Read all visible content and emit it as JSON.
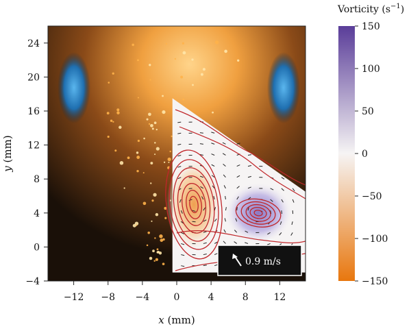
{
  "chart_data": {
    "type": "heatmap",
    "title": "",
    "xlabel": {
      "var": "x",
      "unit": "(mm)"
    },
    "ylabel": {
      "var": "y",
      "unit": "(mm)"
    },
    "xlim": [
      -15,
      15
    ],
    "ylim": [
      -4,
      26
    ],
    "x_ticks": [
      -12,
      -8,
      -4,
      0,
      4,
      8,
      12
    ],
    "y_ticks": [
      -4,
      0,
      4,
      8,
      12,
      16,
      20,
      24
    ],
    "x_tick_labels": [
      "−12",
      "−8",
      "−4",
      "0",
      "4",
      "8",
      "12"
    ],
    "y_tick_labels": [
      "−4",
      "0",
      "4",
      "8",
      "12",
      "16",
      "20",
      "24"
    ],
    "grid": false,
    "colorbar": {
      "title": "Vorticity (s",
      "title_exp": "−1",
      "title_close": ")",
      "range": [
        -150,
        150
      ],
      "ticks": [
        150,
        100,
        50,
        0,
        -50,
        -100,
        -150
      ],
      "tick_labels": [
        "150",
        "100",
        "50",
        "0",
        "−50",
        "−100",
        "−150"
      ],
      "colors": {
        "max": "#5a3d99",
        "mid": "#f6f4f4",
        "min": "#e8770e"
      }
    },
    "vortices": [
      {
        "name": "left vortex",
        "x": 2.0,
        "y": 5.0,
        "sign": "negative"
      },
      {
        "name": "right vortex",
        "x": 9.5,
        "y": 4.0,
        "sign": "positive"
      }
    ],
    "overlay_region_vertices": [
      [
        -0.5,
        17.5
      ],
      [
        15,
        6.5
      ],
      [
        15,
        -3
      ],
      [
        -0.5,
        -3
      ]
    ],
    "scale_arrow": {
      "label": "0.9 m/s"
    },
    "colors": {
      "streamline": "#c0262a",
      "flame_glow": "#f5a040",
      "flame_blue": "#2f8fd0",
      "background": "#1a1008"
    }
  }
}
